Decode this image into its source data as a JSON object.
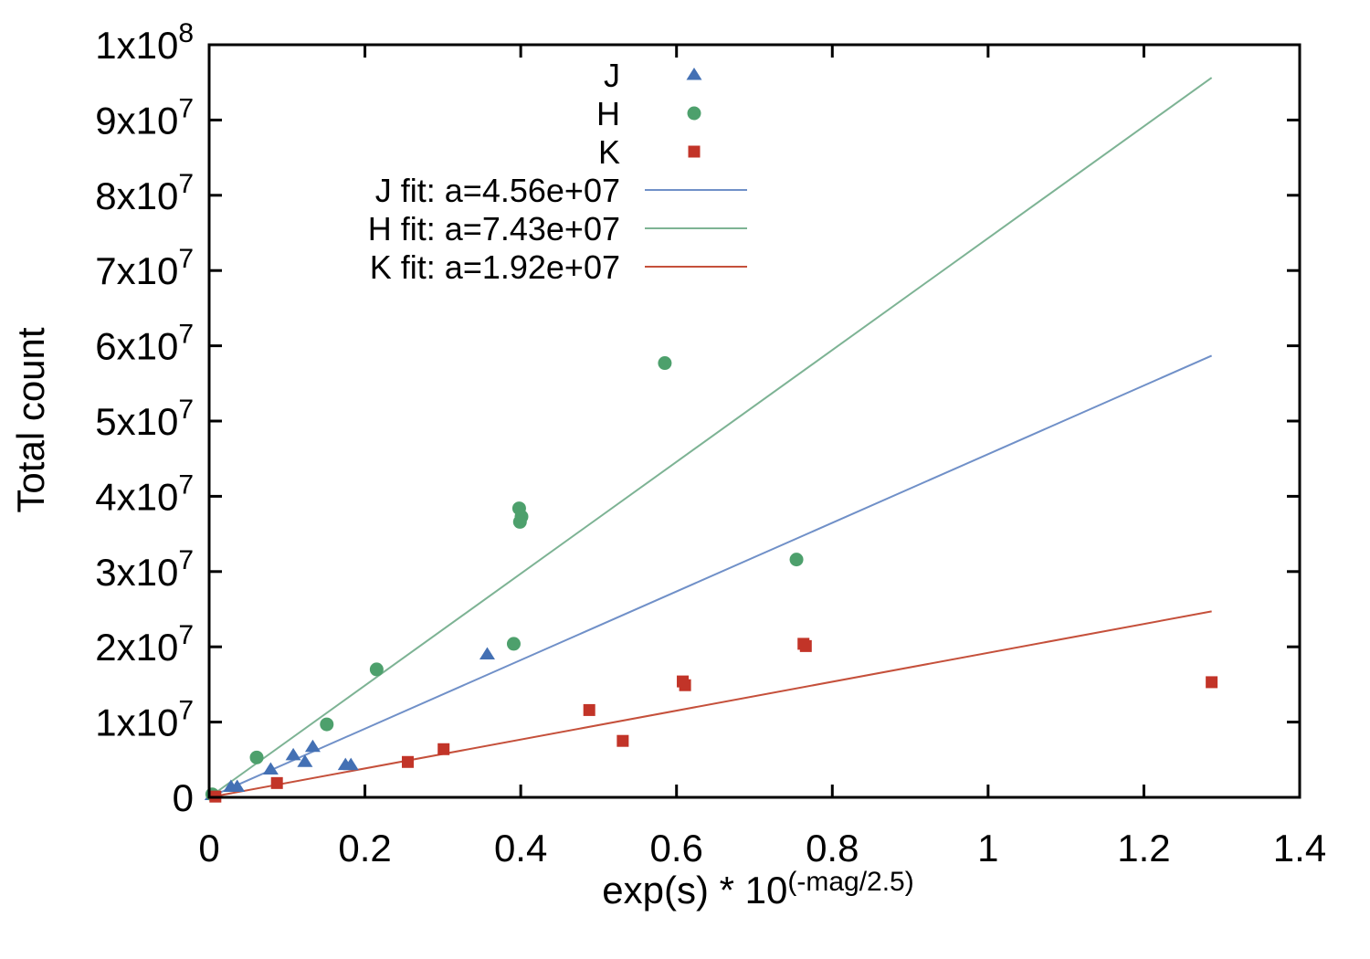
{
  "chart_data": {
    "type": "scatter",
    "title": "",
    "ylabel": "Total count",
    "xlabel": {
      "text": "exp(s) * 10",
      "sup": "(-mag/2.5)"
    },
    "xlim": [
      0,
      1.4
    ],
    "ylim": [
      0,
      100000000
    ],
    "grid": false,
    "legend_position": "top-center-inside",
    "xticks": [
      {
        "v": 0,
        "label": "0"
      },
      {
        "v": 0.2,
        "label": "0.2"
      },
      {
        "v": 0.4,
        "label": "0.4"
      },
      {
        "v": 0.6,
        "label": "0.6"
      },
      {
        "v": 0.8,
        "label": "0.8"
      },
      {
        "v": 1,
        "label": "1"
      },
      {
        "v": 1.2,
        "label": "1.2"
      },
      {
        "v": 1.4,
        "label": "1.4"
      }
    ],
    "yticks": [
      {
        "v": 0,
        "label": "0"
      },
      {
        "v": 10000000,
        "label": "1x10^7"
      },
      {
        "v": 20000000,
        "label": "2x10^7"
      },
      {
        "v": 30000000,
        "label": "3x10^7"
      },
      {
        "v": 40000000,
        "label": "4x10^7"
      },
      {
        "v": 50000000,
        "label": "5x10^7"
      },
      {
        "v": 60000000,
        "label": "6x10^7"
      },
      {
        "v": 70000000,
        "label": "7x10^7"
      },
      {
        "v": 80000000,
        "label": "8x10^7"
      },
      {
        "v": 90000000,
        "label": "9x10^7"
      },
      {
        "v": 100000000,
        "label": "1x10^8"
      }
    ],
    "series": [
      {
        "name": "J",
        "marker": "triangle",
        "color": "#4370b4",
        "points": [
          [
            0.004,
            300000
          ],
          [
            0.028,
            1400000
          ],
          [
            0.036,
            1400000
          ],
          [
            0.079,
            3700000
          ],
          [
            0.108,
            5600000
          ],
          [
            0.123,
            4700000
          ],
          [
            0.133,
            6700000
          ],
          [
            0.175,
            4300000
          ],
          [
            0.182,
            4300000
          ],
          [
            0.357,
            19000000
          ]
        ]
      },
      {
        "name": "H",
        "marker": "circle",
        "color": "#4da06c",
        "points": [
          [
            0.004,
            400000
          ],
          [
            0.061,
            5300000
          ],
          [
            0.151,
            9700000
          ],
          [
            0.215,
            17000000
          ],
          [
            0.391,
            20400000
          ],
          [
            0.398,
            38400000
          ],
          [
            0.401,
            37300000
          ],
          [
            0.399,
            36600000
          ],
          [
            0.585,
            57700000
          ],
          [
            0.754,
            31600000
          ]
        ]
      },
      {
        "name": "K",
        "marker": "square",
        "color": "#c23428",
        "points": [
          [
            0.008,
            100000
          ],
          [
            0.087,
            1900000
          ],
          [
            0.255,
            4700000
          ],
          [
            0.301,
            6400000
          ],
          [
            0.488,
            11600000
          ],
          [
            0.531,
            7500000
          ],
          [
            0.608,
            15400000
          ],
          [
            0.611,
            14900000
          ],
          [
            0.763,
            20400000
          ],
          [
            0.766,
            20100000
          ],
          [
            1.287,
            15300000
          ]
        ]
      }
    ],
    "fits": [
      {
        "label": "J fit: a=4.56e+07",
        "slope": 45600000,
        "color": "#7090c8",
        "x_range": [
          0,
          1.287
        ]
      },
      {
        "label": "H fit: a=7.43e+07",
        "slope": 74300000,
        "color": "#7db394",
        "x_range": [
          0,
          1.287
        ]
      },
      {
        "label": "K fit: a=1.92e+07",
        "slope": 19200000,
        "color": "#c5503b",
        "x_range": [
          0,
          1.287
        ]
      }
    ]
  }
}
